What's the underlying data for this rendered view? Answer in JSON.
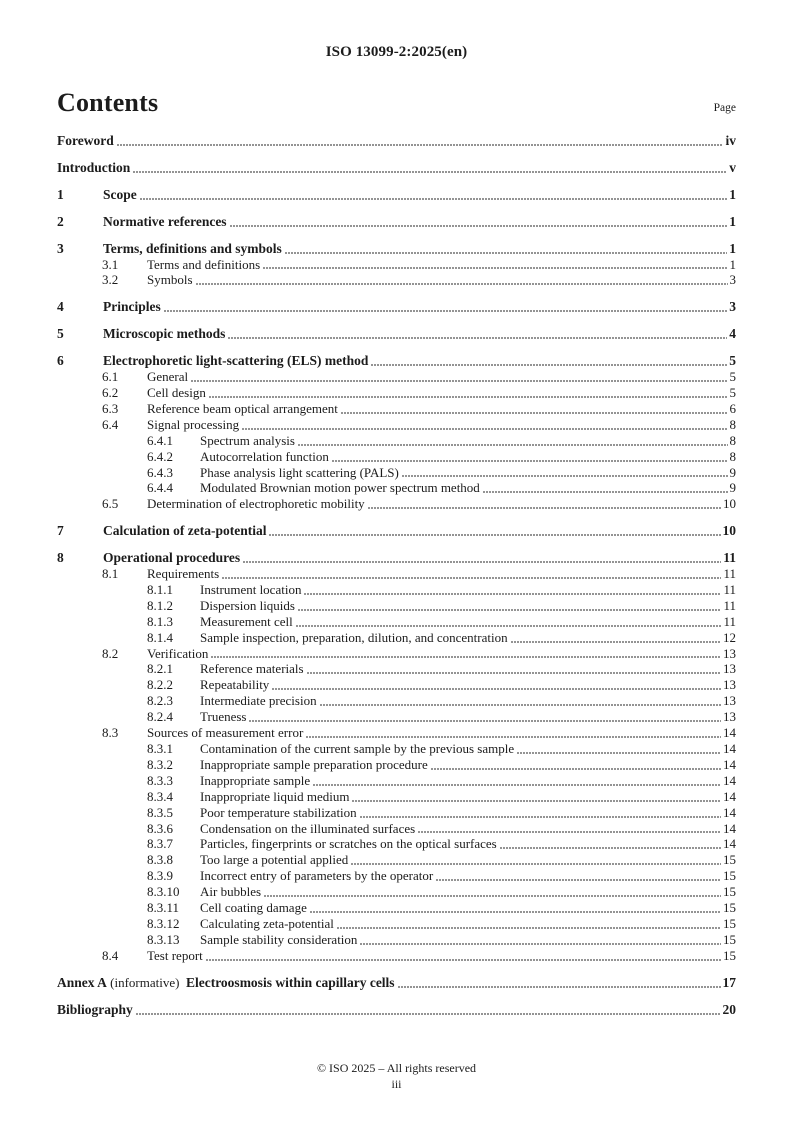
{
  "header": {
    "doc_ref": "ISO 13099-2:2025(en)"
  },
  "contents": {
    "title": "Contents",
    "page_col_label": "Page",
    "entries": [
      {
        "indent": 0,
        "num": null,
        "label": "Foreword",
        "page": "iv",
        "bold": true
      },
      {
        "indent": 0,
        "num": null,
        "label": "Introduction",
        "page": "v",
        "bold": true
      },
      {
        "indent": 0,
        "num": "1",
        "label": "Scope",
        "page": "1",
        "bold": true
      },
      {
        "indent": 0,
        "num": "2",
        "label": "Normative references",
        "page": "1",
        "bold": true
      },
      {
        "indent": 0,
        "num": "3",
        "label": "Terms, definitions and symbols",
        "page": "1",
        "bold": true
      },
      {
        "indent": 1,
        "num": "3.1",
        "label": "Terms and definitions",
        "page": "1",
        "bold": false
      },
      {
        "indent": 1,
        "num": "3.2",
        "label": "Symbols",
        "page": "3",
        "bold": false
      },
      {
        "indent": 0,
        "num": "4",
        "label": "Principles",
        "page": "3",
        "bold": true
      },
      {
        "indent": 0,
        "num": "5",
        "label": "Microscopic methods",
        "page": "4",
        "bold": true
      },
      {
        "indent": 0,
        "num": "6",
        "label": "Electrophoretic light-scattering (ELS) method",
        "page": "5",
        "bold": true
      },
      {
        "indent": 1,
        "num": "6.1",
        "label": "General",
        "page": "5",
        "bold": false
      },
      {
        "indent": 1,
        "num": "6.2",
        "label": "Cell design",
        "page": "5",
        "bold": false
      },
      {
        "indent": 1,
        "num": "6.3",
        "label": "Reference beam optical arrangement",
        "page": "6",
        "bold": false
      },
      {
        "indent": 1,
        "num": "6.4",
        "label": "Signal processing",
        "page": "8",
        "bold": false
      },
      {
        "indent": 2,
        "num": "6.4.1",
        "label": "Spectrum analysis",
        "page": "8",
        "bold": false
      },
      {
        "indent": 2,
        "num": "6.4.2",
        "label": "Autocorrelation function",
        "page": "8",
        "bold": false
      },
      {
        "indent": 2,
        "num": "6.4.3",
        "label": "Phase analysis light scattering (PALS)",
        "page": "9",
        "bold": false
      },
      {
        "indent": 2,
        "num": "6.4.4",
        "label": "Modulated Brownian motion power spectrum method",
        "page": "9",
        "bold": false
      },
      {
        "indent": 1,
        "num": "6.5",
        "label": "Determination of electrophoretic mobility",
        "page": "10",
        "bold": false
      },
      {
        "indent": 0,
        "num": "7",
        "label": "Calculation of zeta-potential",
        "page": "10",
        "bold": true
      },
      {
        "indent": 0,
        "num": "8",
        "label": "Operational procedures",
        "page": "11",
        "bold": true
      },
      {
        "indent": 1,
        "num": "8.1",
        "label": "Requirements",
        "page": "11",
        "bold": false
      },
      {
        "indent": 2,
        "num": "8.1.1",
        "label": "Instrument location",
        "page": "11",
        "bold": false
      },
      {
        "indent": 2,
        "num": "8.1.2",
        "label": "Dispersion liquids",
        "page": "11",
        "bold": false
      },
      {
        "indent": 2,
        "num": "8.1.3",
        "label": "Measurement cell",
        "page": "11",
        "bold": false
      },
      {
        "indent": 2,
        "num": "8.1.4",
        "label": "Sample inspection, preparation, dilution, and concentration",
        "page": "12",
        "bold": false
      },
      {
        "indent": 1,
        "num": "8.2",
        "label": "Verification",
        "page": "13",
        "bold": false
      },
      {
        "indent": 2,
        "num": "8.2.1",
        "label": "Reference materials",
        "page": "13",
        "bold": false
      },
      {
        "indent": 2,
        "num": "8.2.2",
        "label": "Repeatability",
        "page": "13",
        "bold": false
      },
      {
        "indent": 2,
        "num": "8.2.3",
        "label": "Intermediate precision",
        "page": "13",
        "bold": false
      },
      {
        "indent": 2,
        "num": "8.2.4",
        "label": "Trueness",
        "page": "13",
        "bold": false
      },
      {
        "indent": 1,
        "num": "8.3",
        "label": "Sources of measurement error",
        "page": "14",
        "bold": false
      },
      {
        "indent": 2,
        "num": "8.3.1",
        "label": "Contamination of the current sample by the previous sample",
        "page": "14",
        "bold": false
      },
      {
        "indent": 2,
        "num": "8.3.2",
        "label": "Inappropriate sample preparation procedure",
        "page": "14",
        "bold": false
      },
      {
        "indent": 2,
        "num": "8.3.3",
        "label": "Inappropriate sample",
        "page": "14",
        "bold": false
      },
      {
        "indent": 2,
        "num": "8.3.4",
        "label": "Inappropriate liquid medium",
        "page": "14",
        "bold": false
      },
      {
        "indent": 2,
        "num": "8.3.5",
        "label": "Poor temperature stabilization",
        "page": "14",
        "bold": false
      },
      {
        "indent": 2,
        "num": "8.3.6",
        "label": "Condensation on the illuminated surfaces",
        "page": "14",
        "bold": false
      },
      {
        "indent": 2,
        "num": "8.3.7",
        "label": "Particles, fingerprints or scratches on the optical surfaces",
        "page": "14",
        "bold": false
      },
      {
        "indent": 2,
        "num": "8.3.8",
        "label": "Too large a potential applied",
        "page": "15",
        "bold": false
      },
      {
        "indent": 2,
        "num": "8.3.9",
        "label": "Incorrect entry of parameters by the operator",
        "page": "15",
        "bold": false
      },
      {
        "indent": 2,
        "num": "8.3.10",
        "label": "Air bubbles",
        "page": "15",
        "bold": false
      },
      {
        "indent": 2,
        "num": "8.3.11",
        "label": "Cell coating damage",
        "page": "15",
        "bold": false
      },
      {
        "indent": 2,
        "num": "8.3.12",
        "label": "Calculating zeta-potential",
        "page": "15",
        "bold": false
      },
      {
        "indent": 2,
        "num": "8.3.13",
        "label": "Sample stability consideration",
        "page": "15",
        "bold": false
      },
      {
        "indent": 1,
        "num": "8.4",
        "label": "Test report",
        "page": "15",
        "bold": false
      },
      {
        "indent": 0,
        "num": null,
        "page": "17",
        "bold": true,
        "parts": [
          {
            "text": "Annex A",
            "bold": true
          },
          {
            "text": " (informative)  ",
            "bold": false
          },
          {
            "text": "Electroosmosis within capillary cells",
            "bold": true
          }
        ]
      },
      {
        "indent": 0,
        "num": null,
        "label": "Bibliography",
        "page": "20",
        "bold": true
      }
    ]
  },
  "footer": {
    "copyright": "© ISO 2025 – All rights reserved",
    "page_number": "iii"
  }
}
